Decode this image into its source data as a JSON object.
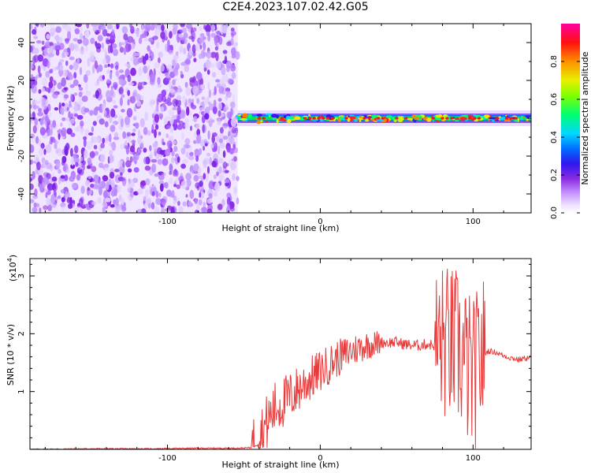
{
  "page": {
    "title": "C2E4.2023.107.02.42.G05"
  },
  "chart_data": [
    {
      "type": "heatmap",
      "xlabel": "Height of straight line (km)",
      "ylabel": "Frequency (Hz)",
      "xlim": [
        -190,
        138
      ],
      "ylim": [
        -50,
        50
      ],
      "xticks": [
        -100,
        0,
        100
      ],
      "yticks": [
        -40,
        -20,
        0,
        20,
        40
      ],
      "noise_region_x": [
        -190,
        -54
      ],
      "signal_center_hz": 0,
      "signal_region_x": [
        -54,
        138
      ],
      "colorbar": {
        "label": "Normalized spectral amplitude",
        "range": [
          0,
          1
        ],
        "ticks": [
          0.0,
          0.2,
          0.4,
          0.6,
          0.8
        ],
        "colors": [
          "#ffffff",
          "#e8d8ff",
          "#c090ff",
          "#8a2be2",
          "#3a0ff0",
          "#0060ff",
          "#00d0ff",
          "#00ff60",
          "#c0ff00",
          "#ffe000",
          "#ff8000",
          "#ff0000",
          "#ff00a0"
        ]
      }
    },
    {
      "type": "line",
      "xlabel": "Height of straight line (km)",
      "ylabel": "SNR (10 * v/v)",
      "yscale_label": "(x10",
      "yscale_exp": "4",
      "xlim": [
        -190,
        138
      ],
      "ylim": [
        0,
        3.3
      ],
      "xticks": [
        -100,
        0,
        100
      ],
      "yticks": [
        1,
        2,
        3
      ],
      "color": "#e83a3a",
      "series": [
        {
          "x": [
            -190,
            -150,
            -110,
            -80,
            -55,
            -45,
            -40,
            -35,
            -30,
            -20,
            -10,
            0,
            10,
            20,
            30,
            40,
            45,
            50,
            55,
            60,
            65,
            70,
            75,
            80,
            85,
            90,
            95,
            100,
            105,
            110,
            115,
            120,
            125,
            130,
            138
          ],
          "y": [
            0.0,
            0.01,
            0.01,
            0.02,
            0.02,
            0.03,
            0.2,
            0.45,
            0.7,
            0.9,
            1.15,
            1.35,
            1.55,
            1.7,
            1.8,
            1.85,
            1.85,
            1.85,
            1.82,
            1.8,
            1.8,
            1.82,
            1.8,
            1.85,
            1.8,
            1.75,
            1.5,
            1.2,
            1.6,
            1.7,
            1.68,
            1.62,
            1.58,
            1.55,
            1.6
          ]
        }
      ]
    }
  ]
}
